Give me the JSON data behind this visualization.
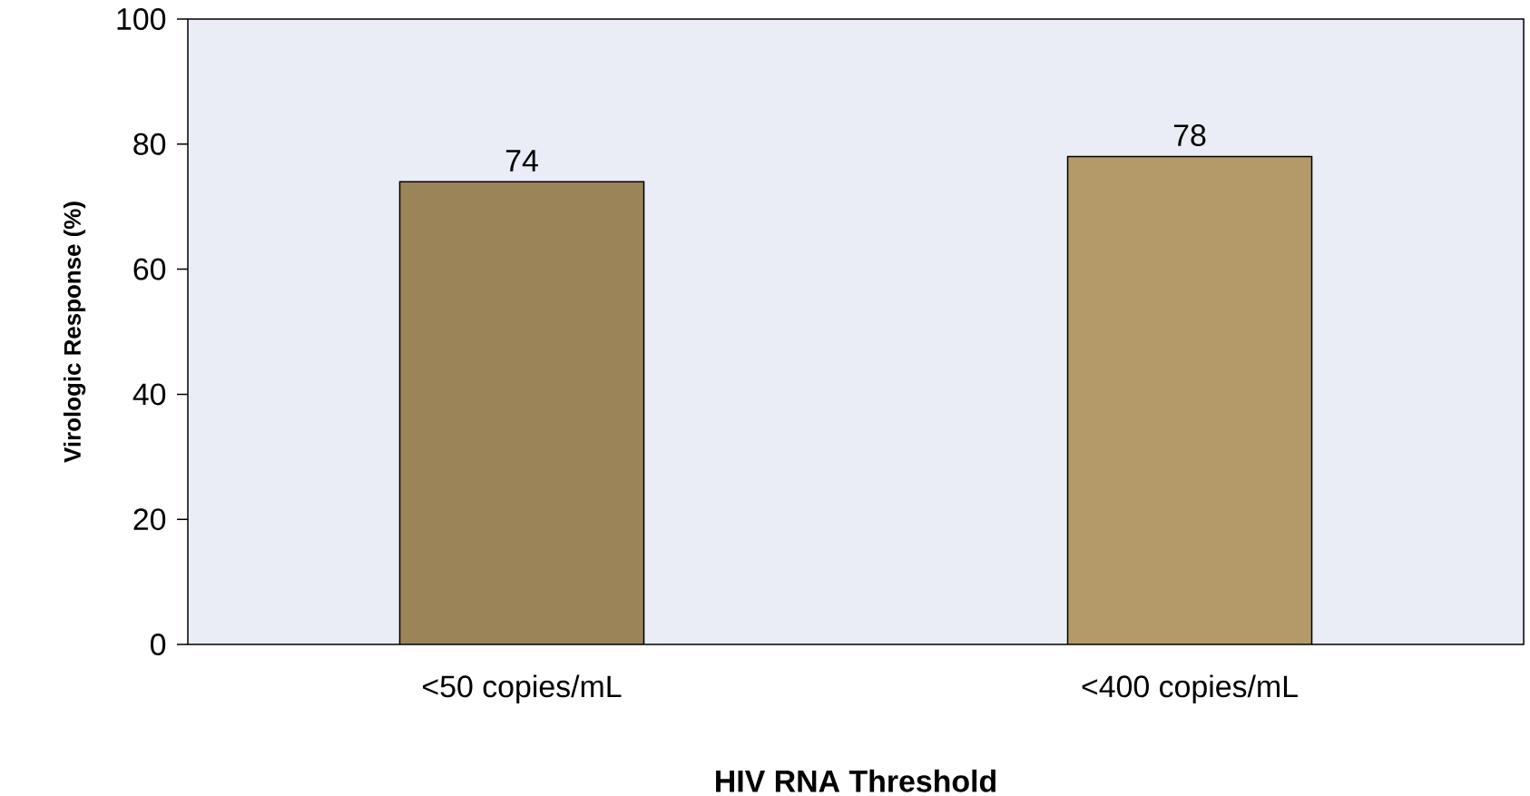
{
  "chart_data": {
    "type": "bar",
    "xlabel": "HIV RNA Threshold",
    "ylabel": "Virologic Response (%)",
    "categories": [
      "<50 copies/mL",
      "<400 copies/mL"
    ],
    "values": [
      74,
      78
    ],
    "colors": [
      "#9c8459",
      "#b39a68"
    ],
    "ylim": [
      0,
      100
    ],
    "yticks": [
      0,
      20,
      40,
      60,
      80,
      100
    ],
    "data_labels": true,
    "grid": false
  }
}
